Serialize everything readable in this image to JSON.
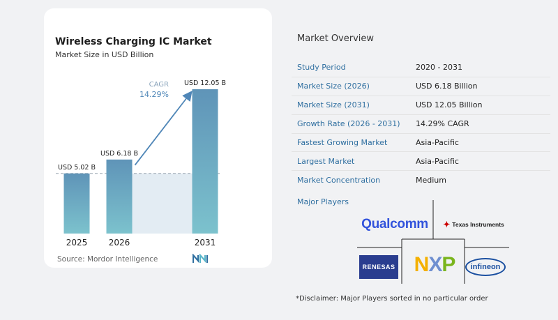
{
  "chart": {
    "title": "Wireless Charging IC Market",
    "subtitle": "Market Size in USD Billion",
    "source": "Source: Mordor Intelligence",
    "cagr_label": "CAGR",
    "cagr_value": "14.29%"
  },
  "chart_data": {
    "type": "bar",
    "categories": [
      "2025",
      "2026",
      "2031"
    ],
    "values": [
      5.02,
      6.18,
      12.05
    ],
    "data_labels": [
      "USD 5.02 B",
      "USD 6.18 B",
      "USD 12.05 B"
    ],
    "title": "Wireless Charging IC Market",
    "subtitle": "Market Size in USD Billion",
    "xlabel": "",
    "ylabel": "",
    "ylim": [
      0,
      12.05
    ],
    "grid": false,
    "annotation": "CAGR 14.29%",
    "colors": {
      "bar_top": "#5f94b8",
      "bar_bottom": "#7cc2cd",
      "shade": "#e3ecf3",
      "arrow": "#4f86b7",
      "dashed_line": "#9aa5b1"
    }
  },
  "overview": {
    "title": "Market Overview",
    "rows": [
      {
        "label": "Study Period",
        "value": "2020 - 2031"
      },
      {
        "label": "Market Size (2026)",
        "value": "USD 6.18 Billion"
      },
      {
        "label": "Market Size (2031)",
        "value": "USD 12.05 Billion"
      },
      {
        "label": "Growth Rate (2026 - 2031)",
        "value": "14.29% CAGR"
      },
      {
        "label": "Fastest Growing Market",
        "value": "Asia-Pacific"
      },
      {
        "label": "Largest Market",
        "value": "Asia-Pacific"
      },
      {
        "label": "Market Concentration",
        "value": "Medium"
      }
    ]
  },
  "players": {
    "title": "Major Players",
    "logos": [
      "Qualcomm",
      "Texas Instruments",
      "Renesas",
      "NXP",
      "Infineon"
    ],
    "qualcomm_text": "Qualcomm",
    "ti_text": "Texas Instruments",
    "renesas_text": "RENESAS",
    "nxp_n": "N",
    "nxp_x": "X",
    "nxp_p": "P",
    "infineon_text": "infineon"
  },
  "disclaimer": "*Disclaimer: Major Players sorted in no particular order"
}
